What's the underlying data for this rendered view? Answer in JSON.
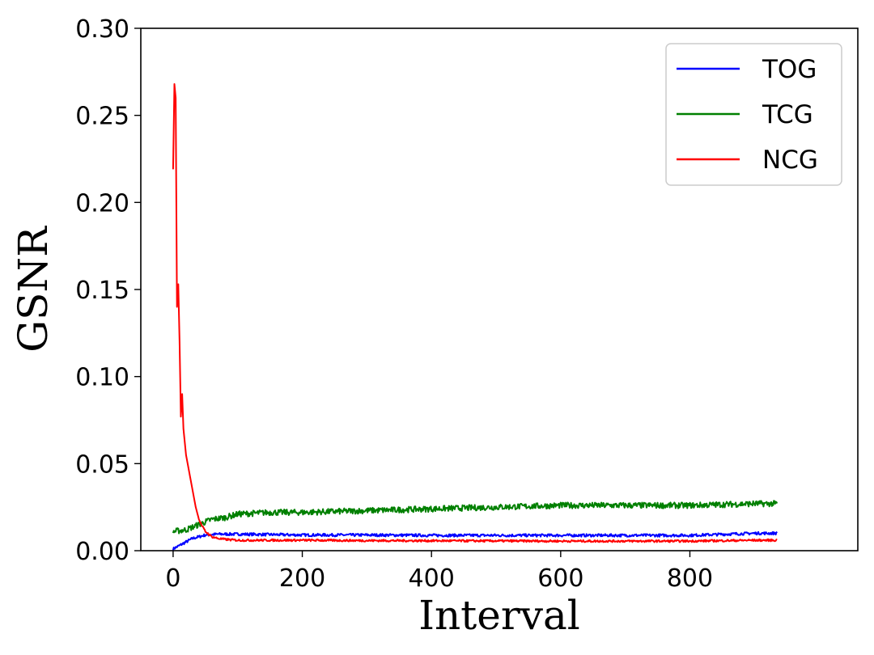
{
  "chart_data": {
    "type": "line",
    "xlabel": "Interval",
    "ylabel": "GSNR",
    "xlim": [
      -50,
      1060
    ],
    "ylim": [
      0,
      0.3
    ],
    "x_ticks": [
      0,
      200,
      400,
      600,
      800
    ],
    "y_ticks": [
      0.0,
      0.05,
      0.1,
      0.15,
      0.2,
      0.25,
      0.3
    ],
    "y_tick_labels": [
      "0.00",
      "0.05",
      "0.10",
      "0.15",
      "0.20",
      "0.25",
      "0.30"
    ],
    "grid": false,
    "legend_position": "top-right",
    "series": [
      {
        "name": "TOG",
        "color": "#0000ff",
        "noise": 0.0008,
        "points": [
          [
            0,
            0.001
          ],
          [
            10,
            0.003
          ],
          [
            20,
            0.005
          ],
          [
            30,
            0.007
          ],
          [
            40,
            0.008
          ],
          [
            50,
            0.009
          ],
          [
            70,
            0.0095
          ],
          [
            100,
            0.0095
          ],
          [
            200,
            0.009
          ],
          [
            300,
            0.009
          ],
          [
            400,
            0.0088
          ],
          [
            500,
            0.0088
          ],
          [
            600,
            0.0088
          ],
          [
            700,
            0.0088
          ],
          [
            800,
            0.0088
          ],
          [
            900,
            0.01
          ],
          [
            935,
            0.01
          ]
        ]
      },
      {
        "name": "TCG",
        "color": "#008000",
        "noise": 0.0017,
        "points": [
          [
            0,
            0.011
          ],
          [
            20,
            0.012
          ],
          [
            40,
            0.015
          ],
          [
            60,
            0.018
          ],
          [
            80,
            0.019
          ],
          [
            100,
            0.021
          ],
          [
            150,
            0.022
          ],
          [
            200,
            0.022
          ],
          [
            300,
            0.023
          ],
          [
            400,
            0.024
          ],
          [
            500,
            0.025
          ],
          [
            600,
            0.026
          ],
          [
            700,
            0.026
          ],
          [
            800,
            0.026
          ],
          [
            900,
            0.027
          ],
          [
            935,
            0.027
          ]
        ]
      },
      {
        "name": "NCG",
        "color": "#ff0000",
        "noise": 0.0006,
        "points": [
          [
            0,
            0.219
          ],
          [
            2,
            0.268
          ],
          [
            4,
            0.26
          ],
          [
            6,
            0.14
          ],
          [
            8,
            0.153
          ],
          [
            10,
            0.12
          ],
          [
            12,
            0.077
          ],
          [
            14,
            0.09
          ],
          [
            16,
            0.07
          ],
          [
            20,
            0.055
          ],
          [
            25,
            0.045
          ],
          [
            30,
            0.035
          ],
          [
            35,
            0.025
          ],
          [
            40,
            0.018
          ],
          [
            45,
            0.014
          ],
          [
            50,
            0.011
          ],
          [
            60,
            0.008
          ],
          [
            70,
            0.007
          ],
          [
            80,
            0.0065
          ],
          [
            100,
            0.006
          ],
          [
            200,
            0.006
          ],
          [
            300,
            0.0058
          ],
          [
            400,
            0.0057
          ],
          [
            500,
            0.0056
          ],
          [
            600,
            0.0055
          ],
          [
            700,
            0.0055
          ],
          [
            800,
            0.0055
          ],
          [
            900,
            0.006
          ],
          [
            935,
            0.006
          ]
        ]
      }
    ]
  }
}
